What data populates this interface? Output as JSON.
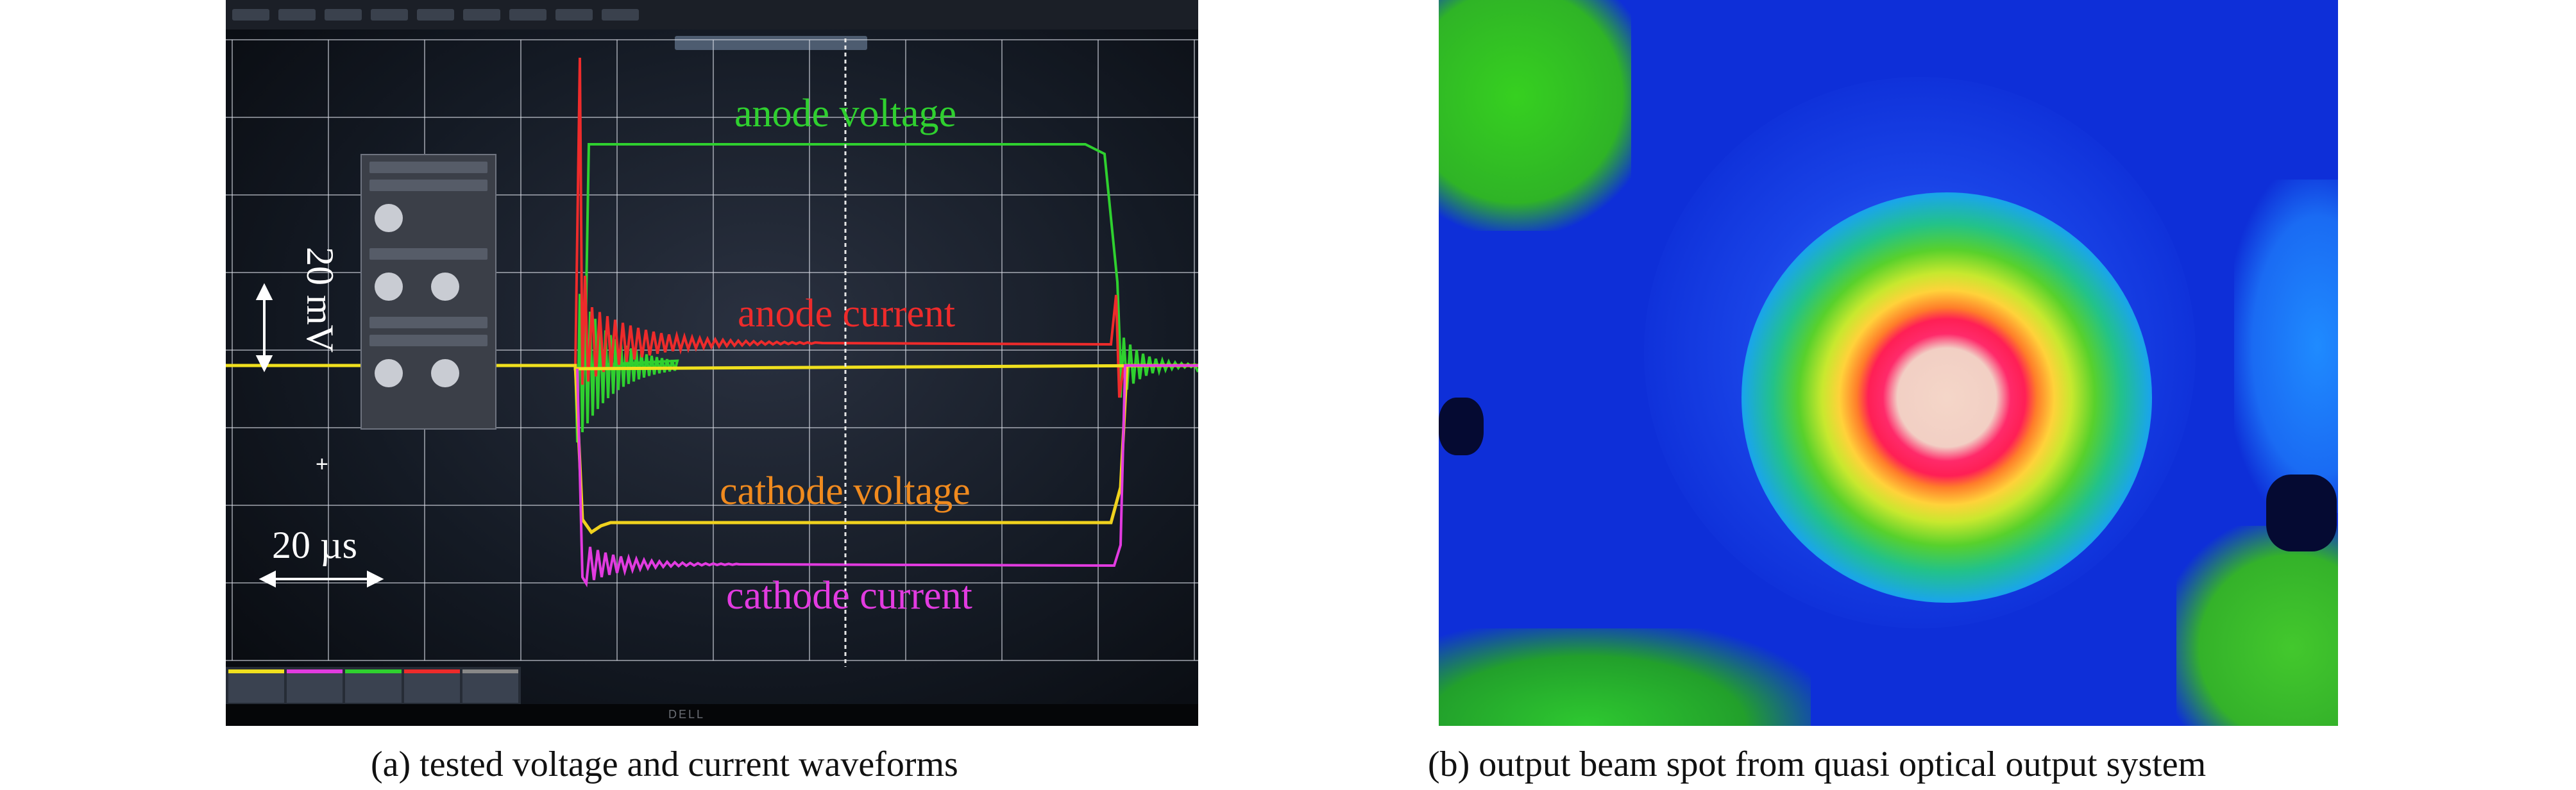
{
  "panel_a": {
    "caption": "(a) tested voltage and current waveforms",
    "labels": {
      "anode_voltage": "anode voltage",
      "anode_current": "anode current",
      "cathode_voltage": "cathode voltage",
      "cathode_current": "cathode current"
    },
    "scale": {
      "vertical": "20 mV",
      "time": "20 µs"
    },
    "colors": {
      "anode_voltage": "#2fd02f",
      "anode_current": "#ee2b2b",
      "cathode_voltage": "#f0d21e",
      "cathode_current": "#e23be0",
      "baseline": "#f0e01e",
      "grid": "#d8dde6"
    },
    "bezel_logo": "DELL"
  },
  "panel_b": {
    "caption": "(b) output beam spot from quasi optical output system",
    "colormap": [
      "#0e2fd8",
      "#1aa6e8",
      "#58d12c",
      "#ffd23a",
      "#ff1f55",
      "#f4d6c8"
    ]
  }
}
